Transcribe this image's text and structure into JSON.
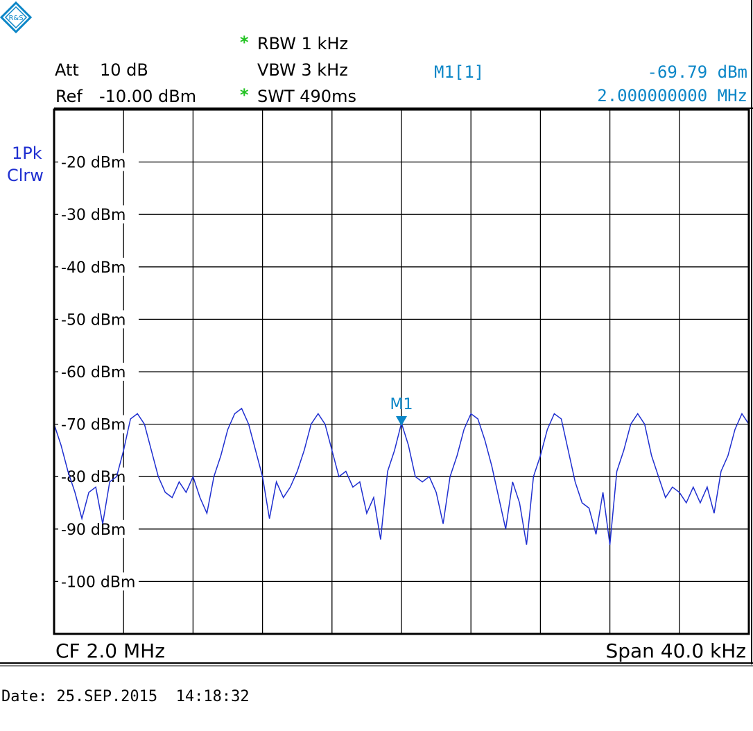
{
  "header": {
    "att_label": "Att",
    "att_value": "10 dB",
    "ref_label": "Ref",
    "ref_value": "-10.00 dBm",
    "rbw_star": "*",
    "rbw": "RBW 1 kHz",
    "vbw": "VBW 3 kHz",
    "swt_star": "*",
    "swt": "SWT 490ms",
    "marker_name": "M1[1]",
    "marker_level": "-69.79 dBm",
    "marker_freq": "2.000000000 MHz"
  },
  "trace": {
    "line1": "1Pk",
    "line2": "Clrw"
  },
  "footer": {
    "cf": "CF 2.0 MHz",
    "span": "Span 40.0 kHz",
    "date": "Date: 25.SEP.2015  14:18:32"
  },
  "colors": {
    "trace": "#1f2fd0",
    "marker": "#0b86c7",
    "grid": "#000000",
    "star": "#22c322"
  },
  "icons": {
    "logo": "rohde-schwarz-logo-icon"
  },
  "chart_data": {
    "type": "line",
    "title": "",
    "xlabel": "",
    "ylabel": "",
    "center_freq_mhz": 2.0,
    "span_khz": 40.0,
    "xlim": [
      -20,
      20
    ],
    "ylim": [
      -110,
      -10
    ],
    "yticks": [
      -20,
      -30,
      -40,
      -50,
      -60,
      -70,
      -80,
      -90,
      -100
    ],
    "ytick_labels": [
      "-20 dBm",
      "-30 dBm",
      "-40 dBm",
      "-50 dBm",
      "-60 dBm",
      "-70 dBm",
      "-80 dBm",
      "-90 dBm",
      "-100 dBm"
    ],
    "x_divisions": 10,
    "y_divisions": 10,
    "grid": true,
    "marker": {
      "label": "M1",
      "x": 0,
      "y": -69.79
    },
    "series": [
      {
        "x": [
          -20,
          -19.6,
          -19.2,
          -18.8,
          -18.4,
          -18.0,
          -17.6,
          -17.2,
          -16.8,
          -16.4,
          -16.0,
          -15.6,
          -15.2,
          -14.8,
          -14.4,
          -14.0,
          -13.6,
          -13.2,
          -12.8,
          -12.4,
          -12.0,
          -11.6,
          -11.2,
          -10.8,
          -10.4,
          -10.0,
          -9.6,
          -9.2,
          -8.8,
          -8.4,
          -8.0,
          -7.6,
          -7.2,
          -6.8,
          -6.4,
          -6.0,
          -5.6,
          -5.2,
          -4.8,
          -4.4,
          -4.0,
          -3.6,
          -3.2,
          -2.8,
          -2.4,
          -2.0,
          -1.6,
          -1.2,
          -0.8,
          -0.4,
          0.0,
          0.4,
          0.8,
          1.2,
          1.6,
          2.0,
          2.4,
          2.8,
          3.2,
          3.6,
          4.0,
          4.4,
          4.8,
          5.2,
          5.6,
          6.0,
          6.4,
          6.8,
          7.2,
          7.6,
          8.0,
          8.4,
          8.8,
          9.2,
          9.6,
          10.0,
          10.4,
          10.8,
          11.2,
          11.6,
          12.0,
          12.4,
          12.8,
          13.2,
          13.6,
          14.0,
          14.4,
          14.8,
          15.2,
          15.6,
          16.0,
          16.4,
          16.8,
          17.2,
          17.6,
          18.0,
          18.4,
          18.8,
          19.2,
          19.6,
          20.0
        ],
        "values": [
          -70,
          -74,
          -79,
          -83,
          -88,
          -83,
          -82,
          -89,
          -81,
          -80,
          -75,
          -69,
          -68,
          -70,
          -75,
          -80,
          -83,
          -84,
          -81,
          -83,
          -80,
          -84,
          -87,
          -80,
          -76,
          -71,
          -68,
          -67,
          -70,
          -75,
          -80,
          -88,
          -81,
          -84,
          -82,
          -79,
          -75,
          -70,
          -68,
          -70,
          -75,
          -80,
          -79,
          -82,
          -81,
          -87,
          -84,
          -92,
          -79,
          -75,
          -69.79,
          -74,
          -80,
          -81,
          -80,
          -83,
          -89,
          -80,
          -76,
          -71,
          -68,
          -69,
          -73,
          -78,
          -84,
          -90,
          -81,
          -85,
          -93,
          -80,
          -76,
          -71,
          -68,
          -69,
          -75,
          -81,
          -85,
          -86,
          -91,
          -83,
          -93,
          -79,
          -75,
          -70,
          -68,
          -70,
          -76,
          -80,
          -84,
          -82,
          -83,
          -85,
          -82,
          -85,
          -82,
          -87,
          -79,
          -76,
          -71,
          -68,
          -70
        ]
      }
    ]
  }
}
